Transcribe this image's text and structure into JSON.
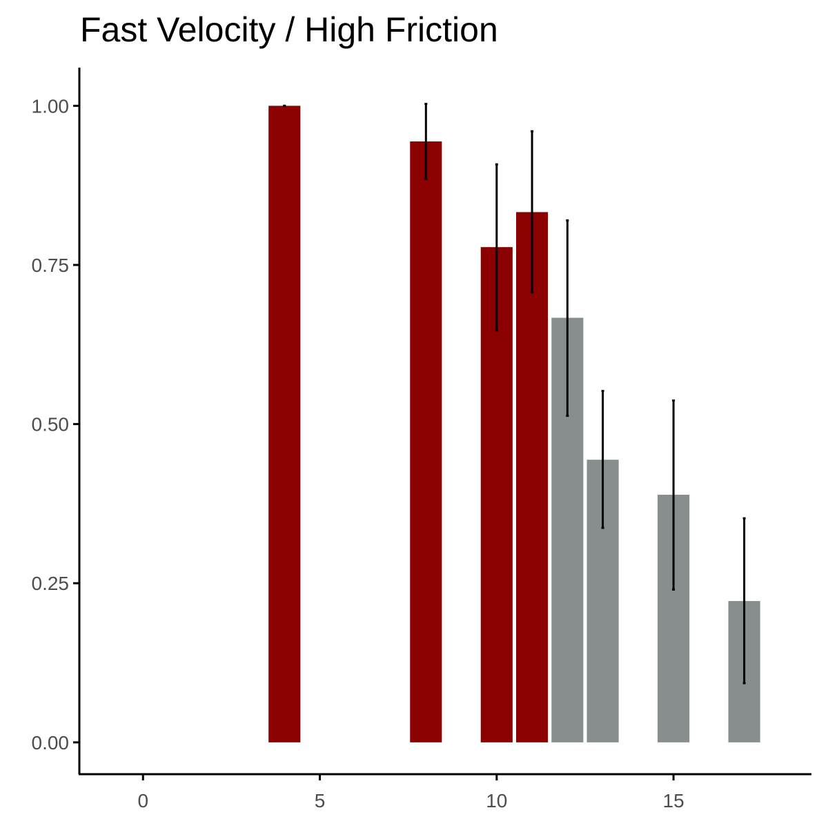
{
  "chart_data": {
    "type": "bar",
    "title": "Fast Velocity / High Friction",
    "xlabel": "",
    "ylabel": "",
    "xlim": [
      -1.8,
      18.9
    ],
    "ylim": [
      -0.05,
      1.06
    ],
    "x_ticks": [
      0,
      5,
      10,
      15
    ],
    "x_tick_labels": [
      "0",
      "5",
      "10",
      "15"
    ],
    "y_ticks": [
      0,
      0.25,
      0.5,
      0.75,
      1.0
    ],
    "y_tick_labels": [
      "0.00",
      "0.25",
      "0.50",
      "0.75",
      "1.00"
    ],
    "grid": false,
    "legend": "none",
    "bar_width": 0.9,
    "bars": [
      {
        "x": 4,
        "value": 1.0,
        "err_low": 1.0,
        "err_high": 1.0,
        "color": "#8b0000"
      },
      {
        "x": 8,
        "value": 0.944,
        "err_low": 0.885,
        "err_high": 1.003,
        "color": "#8b0000"
      },
      {
        "x": 10,
        "value": 0.778,
        "err_low": 0.647,
        "err_high": 0.908,
        "color": "#8b0000"
      },
      {
        "x": 11,
        "value": 0.833,
        "err_low": 0.707,
        "err_high": 0.96,
        "color": "#8b0000"
      },
      {
        "x": 12,
        "value": 0.667,
        "err_low": 0.513,
        "err_high": 0.82,
        "color": "#878e8d"
      },
      {
        "x": 13,
        "value": 0.444,
        "err_low": 0.337,
        "err_high": 0.552,
        "color": "#878e8d"
      },
      {
        "x": 15,
        "value": 0.389,
        "err_low": 0.24,
        "err_high": 0.537,
        "color": "#878e8d"
      },
      {
        "x": 17,
        "value": 0.222,
        "err_low": 0.093,
        "err_high": 0.352,
        "color": "#878e8d"
      }
    ],
    "error_bar_color": "#000000"
  }
}
